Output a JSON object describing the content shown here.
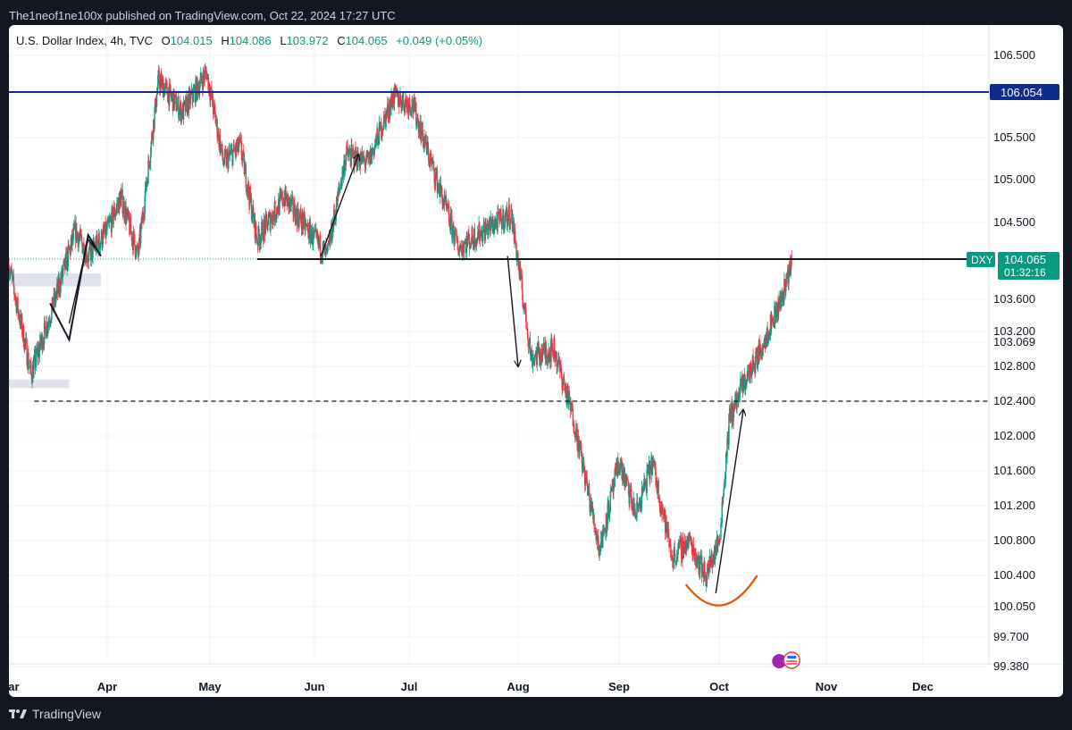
{
  "header": {
    "publisher_text": "The1neof1ne100x published on TradingView.com, Oct 22, 2024 17:27 UTC"
  },
  "legend": {
    "symbol": "U.S. Dollar Index, 4h, TVC",
    "o_label": "O",
    "o_value": "104.015",
    "h_label": "H",
    "h_value": "104.086",
    "l_label": "L",
    "l_value": "103.972",
    "c_label": "C",
    "c_value": "104.065",
    "change": "+0.049 (+0.05%)"
  },
  "footer": {
    "brand": "TradingView"
  },
  "colors": {
    "up": "#089981",
    "down": "#f23645",
    "resistance": "#0d2c8c",
    "last_price": "#089981",
    "arc": "#e65100",
    "support": "#131722",
    "gridline": "#f0f3fa",
    "zone": "#e0e3eb"
  },
  "chart_data": {
    "type": "candlestick",
    "interval": "4h",
    "y_range": [
      99.3,
      106.7
    ],
    "x_range": [
      "2024-03-01",
      "2024-12-31"
    ],
    "y_ticks": [
      "106.500",
      "105.500",
      "105.000",
      "104.500",
      "103.600",
      "103.200",
      "103.069",
      "102.800",
      "102.400",
      "102.000",
      "101.600",
      "101.200",
      "100.800",
      "100.400",
      "100.050",
      "99.700",
      "99.380"
    ],
    "x_tick_labels": [
      {
        "label": "Mar",
        "date": "2024-03-01"
      },
      {
        "label": "Apr",
        "date": "2024-04-01"
      },
      {
        "label": "May",
        "date": "2024-05-01"
      },
      {
        "label": "Jun",
        "date": "2024-06-01"
      },
      {
        "label": "Jul",
        "date": "2024-07-01"
      },
      {
        "label": "Aug",
        "date": "2024-08-01"
      },
      {
        "label": "Sep",
        "date": "2024-09-01"
      },
      {
        "label": "Oct",
        "date": "2024-10-01"
      },
      {
        "label": "Nov",
        "date": "2024-11-01"
      },
      {
        "label": "Dec",
        "date": "2024-12-01"
      }
    ],
    "price_path": [
      [
        "2024-03-01",
        104.0
      ],
      [
        "2024-03-08",
        102.7
      ],
      [
        "2024-03-14",
        103.4
      ],
      [
        "2024-03-22",
        104.4
      ],
      [
        "2024-03-26",
        104.1
      ],
      [
        "2024-04-01",
        104.4
      ],
      [
        "2024-04-05",
        104.8
      ],
      [
        "2024-04-10",
        104.1
      ],
      [
        "2024-04-16",
        106.2
      ],
      [
        "2024-04-23",
        105.8
      ],
      [
        "2024-04-30",
        106.3
      ],
      [
        "2024-05-05",
        105.2
      ],
      [
        "2024-05-10",
        105.4
      ],
      [
        "2024-05-15",
        104.3
      ],
      [
        "2024-05-23",
        104.8
      ],
      [
        "2024-06-01",
        104.3
      ],
      [
        "2024-06-05",
        104.1
      ],
      [
        "2024-06-11",
        105.3
      ],
      [
        "2024-06-18",
        105.2
      ],
      [
        "2024-06-26",
        106.0
      ],
      [
        "2024-07-02",
        105.9
      ],
      [
        "2024-07-08",
        105.1
      ],
      [
        "2024-07-15",
        104.2
      ],
      [
        "2024-07-22",
        104.4
      ],
      [
        "2024-07-30",
        104.6
      ],
      [
        "2024-08-05",
        102.9
      ],
      [
        "2024-08-12",
        103.0
      ],
      [
        "2024-08-18",
        102.2
      ],
      [
        "2024-08-26",
        100.7
      ],
      [
        "2024-09-01",
        101.7
      ],
      [
        "2024-09-06",
        101.1
      ],
      [
        "2024-09-11",
        101.7
      ],
      [
        "2024-09-17",
        100.6
      ],
      [
        "2024-09-22",
        100.8
      ],
      [
        "2024-09-27",
        100.4
      ],
      [
        "2024-10-01",
        100.8
      ],
      [
        "2024-10-04",
        102.2
      ],
      [
        "2024-10-08",
        102.6
      ],
      [
        "2024-10-12",
        102.9
      ],
      [
        "2024-10-16",
        103.3
      ],
      [
        "2024-10-19",
        103.6
      ],
      [
        "2024-10-22",
        104.065
      ]
    ],
    "horizontal_lines": [
      {
        "name": "resistance",
        "value": 106.054,
        "label": "106.054",
        "style": "solid"
      },
      {
        "name": "support",
        "value": 104.065,
        "style": "solid",
        "from": "2024-05-15"
      },
      {
        "name": "support-low",
        "value": 102.4,
        "style": "dashed",
        "from": "2024-03-09"
      }
    ],
    "last_price": {
      "symbol": "DXY",
      "value": "104.065",
      "countdown": "01:32:16"
    },
    "gray_zones": [
      {
        "from": "2024-03-01",
        "to": "2024-03-30",
        "y_low": 103.75,
        "y_high": 103.9
      },
      {
        "from": "2024-03-01",
        "to": "2024-03-20",
        "y_low": 102.55,
        "y_high": 102.65
      }
    ],
    "arrows": [
      {
        "from": [
          "2024-03-20",
          103.3
        ],
        "to": [
          "2024-03-26",
          104.3
        ],
        "type": "polyline"
      },
      {
        "from": [
          "2024-03-26",
          104.3
        ],
        "to": [
          "2024-03-28",
          104.2
        ],
        "type": "polyline"
      },
      {
        "from": [
          "2024-06-03",
          104.1
        ],
        "to": [
          "2024-06-15",
          105.3
        ],
        "type": "arrow"
      },
      {
        "from": [
          "2024-07-29",
          104.1
        ],
        "to": [
          "2024-08-01",
          102.8
        ],
        "type": "arrow"
      },
      {
        "from": [
          "2024-09-30",
          100.2
        ],
        "to": [
          "2024-10-08",
          102.3
        ],
        "type": "arrow"
      }
    ],
    "arc": {
      "from": [
        "2024-09-21",
        100.3
      ],
      "to": [
        "2024-10-12",
        100.3
      ],
      "bottom": 100.0
    }
  }
}
